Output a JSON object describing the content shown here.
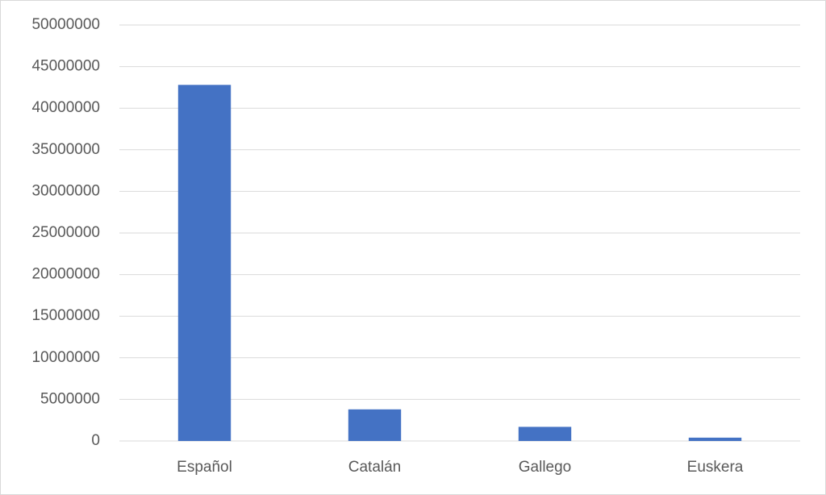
{
  "chart_data": {
    "type": "bar",
    "categories": [
      "Español",
      "Catalán",
      "Gallego",
      "Euskera"
    ],
    "values": [
      42800000,
      3800000,
      1700000,
      400000
    ],
    "color": "#4472c4",
    "ylim": [
      0,
      50000000
    ],
    "yticks": [
      0,
      5000000,
      10000000,
      15000000,
      20000000,
      25000000,
      30000000,
      35000000,
      40000000,
      45000000,
      50000000
    ],
    "grid": true
  }
}
